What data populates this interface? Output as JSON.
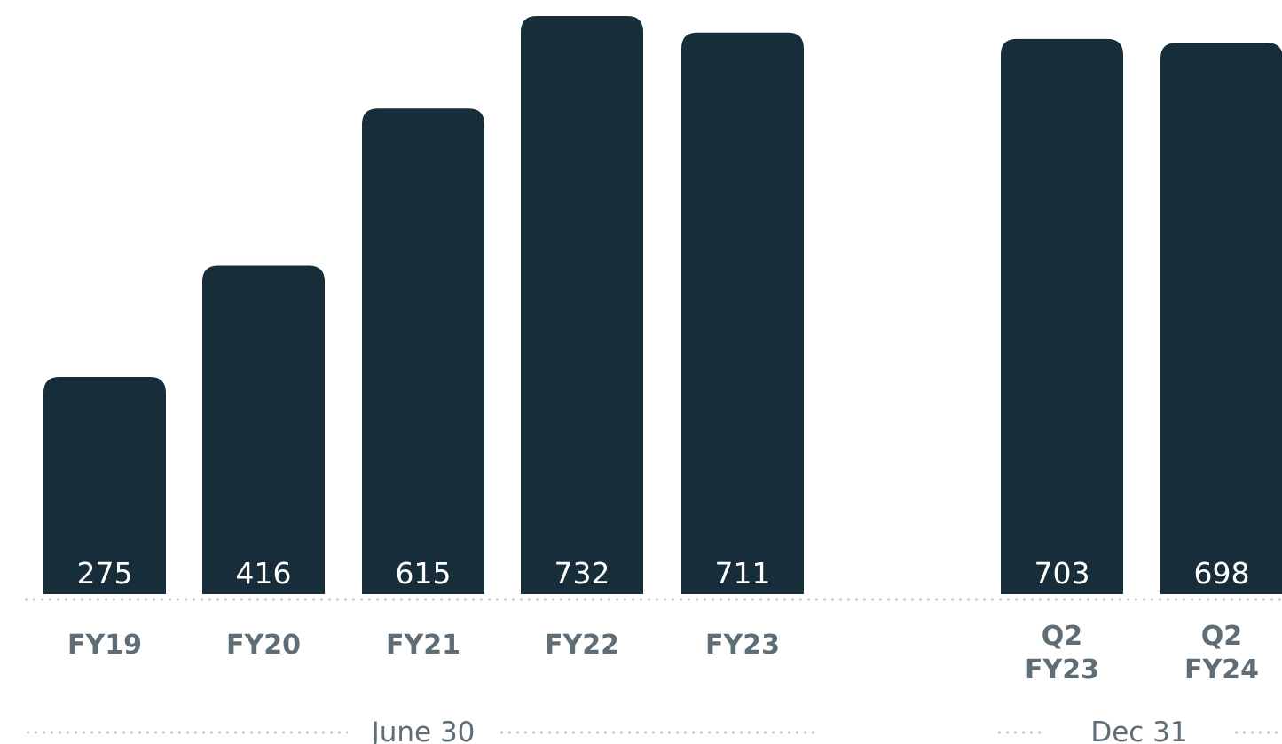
{
  "chart_data": {
    "type": "bar",
    "categories": [
      [
        "FY19"
      ],
      [
        "FY20"
      ],
      [
        "FY21"
      ],
      [
        "FY22"
      ],
      [
        "FY23"
      ],
      [
        "Q2",
        "FY23"
      ],
      [
        "Q2",
        "FY24"
      ]
    ],
    "values": [
      275,
      416,
      615,
      732,
      711,
      703,
      698
    ],
    "value_labels": [
      "275",
      "416",
      "615",
      "732",
      "711",
      "703",
      "698"
    ],
    "groups": [
      {
        "label": "June 30",
        "first": 0,
        "last": 4
      },
      {
        "label": "Dec 31",
        "first": 5,
        "last": 6
      }
    ],
    "ylim": [
      0,
      732
    ],
    "grid": false,
    "colors": {
      "bar": "#172d39",
      "value_text": "#ffffff",
      "label_text": "#5f6d76",
      "dots": "#c9ced2"
    }
  }
}
